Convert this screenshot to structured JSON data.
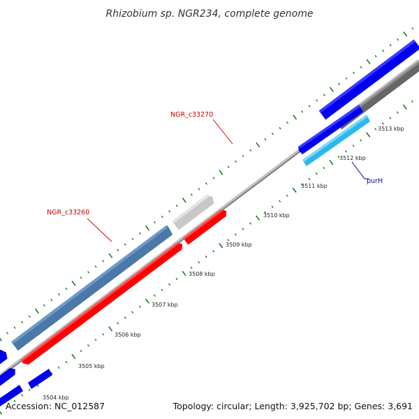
{
  "title": "Rhizobium sp. NGR234, complete genome",
  "footer": {
    "accession": "Accession: NC_012587",
    "topology": "Topology: circular; Length: 3,925,702 bp; Genes: 3,691"
  },
  "ticks": [
    {
      "label": "3504 kbp"
    },
    {
      "label": "3505 kbp"
    },
    {
      "label": "3506 kbp"
    },
    {
      "label": "3507 kbp"
    },
    {
      "label": "3508 kbp"
    },
    {
      "label": "3509 kbp"
    },
    {
      "label": "3510 kbp"
    },
    {
      "label": "3511 kbp"
    },
    {
      "label": "3512 kbp"
    },
    {
      "label": "3513 kbp"
    }
  ],
  "genes": [
    {
      "name": "NGR_c33260",
      "label_color": "#cc0000"
    },
    {
      "name": "NGR_c33270",
      "label_color": "#cc0000"
    },
    {
      "name": "purH",
      "label_color": "#0000aa"
    }
  ],
  "colors": {
    "backbone": "#888888",
    "tick_green": "#1a7a1a",
    "steelblue_gene": "#4a78a8",
    "red_gene": "#ff0000",
    "lightgray_gene": "#c8c8c8",
    "blue_gene": "#0000ee",
    "cyan_gene": "#2ab8ee",
    "darkgray_gene": "#666666"
  }
}
